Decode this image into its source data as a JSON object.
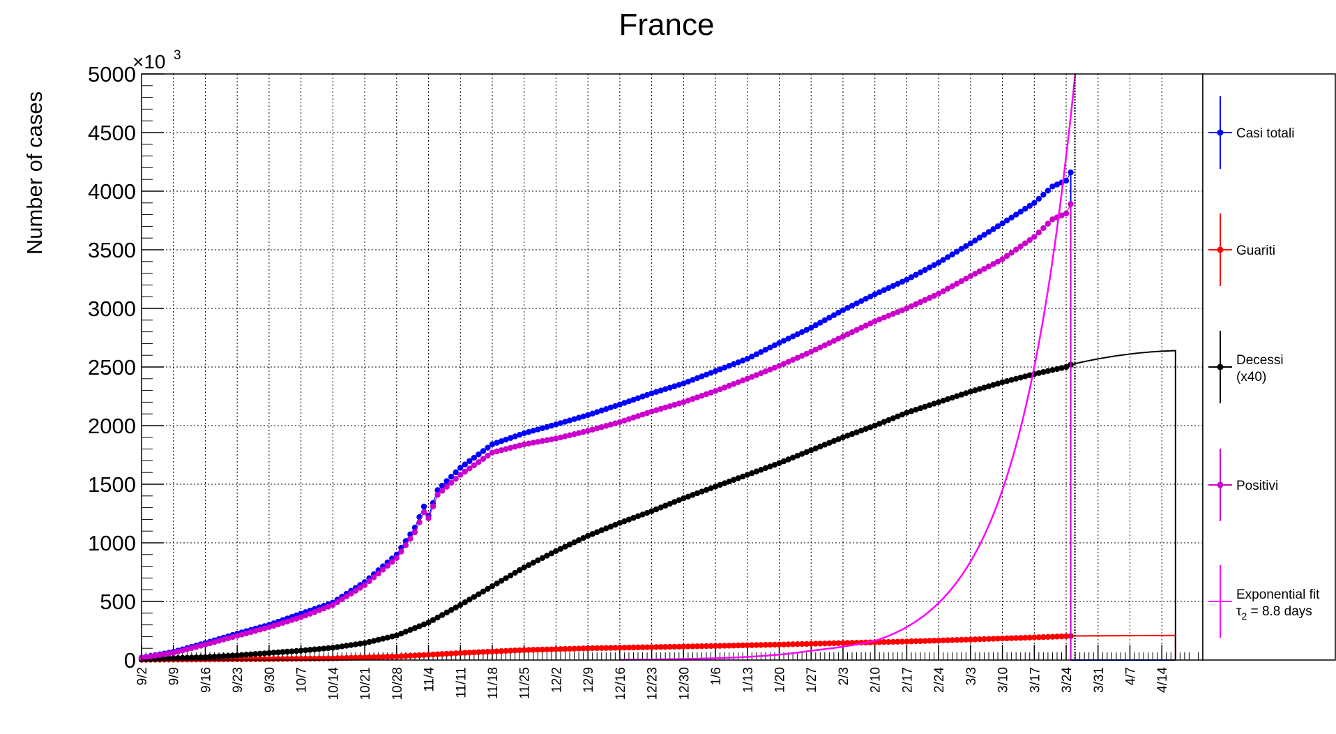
{
  "chart_data": {
    "type": "line",
    "title": "France",
    "ylabel": "Number of cases",
    "y_multiplier_label": "×10",
    "y_multiplier_exponent": "3",
    "ylim": [
      0,
      5000
    ],
    "xlim": [
      "2020-09-02",
      "2021-04-23"
    ],
    "grid": true,
    "legend_position": "right",
    "y_ticks": [
      "0",
      "500",
      "1000",
      "1500",
      "2000",
      "2500",
      "3000",
      "3500",
      "4000",
      "4500",
      "5000"
    ],
    "x_ticks": [
      "9/2",
      "9/9",
      "9/16",
      "9/23",
      "9/30",
      "10/7",
      "10/14",
      "10/21",
      "10/28",
      "11/4",
      "11/11",
      "11/18",
      "11/25",
      "12/2",
      "12/9",
      "12/16",
      "12/23",
      "12/30",
      "1/6",
      "1/13",
      "1/20",
      "1/27",
      "2/3",
      "2/10",
      "2/17",
      "2/24",
      "3/3",
      "3/10",
      "3/17",
      "3/24",
      "3/31",
      "4/7",
      "4/14"
    ],
    "x_tick_dates": [
      "2020-09-02",
      "2020-09-09",
      "2020-09-16",
      "2020-09-23",
      "2020-09-30",
      "2020-10-07",
      "2020-10-14",
      "2020-10-21",
      "2020-10-28",
      "2020-11-04",
      "2020-11-11",
      "2020-11-18",
      "2020-11-25",
      "2020-12-02",
      "2020-12-09",
      "2020-12-16",
      "2020-12-23",
      "2020-12-30",
      "2021-01-06",
      "2021-01-13",
      "2021-01-20",
      "2021-01-27",
      "2021-02-03",
      "2021-02-10",
      "2021-02-17",
      "2021-02-24",
      "2021-03-03",
      "2021-03-10",
      "2021-03-17",
      "2021-03-24",
      "2021-03-31",
      "2021-04-07",
      "2021-04-14"
    ],
    "series": [
      {
        "name": "Casi totali",
        "color": "#0000ff",
        "x": [
          "2020-09-02",
          "2020-09-09",
          "2020-09-16",
          "2020-09-23",
          "2020-09-30",
          "2020-10-07",
          "2020-10-14",
          "2020-10-21",
          "2020-10-28",
          "2020-11-01",
          "2020-11-03",
          "2020-11-04",
          "2020-11-06",
          "2020-11-11",
          "2020-11-18",
          "2020-11-25",
          "2020-12-02",
          "2020-12-09",
          "2020-12-16",
          "2020-12-23",
          "2020-12-30",
          "2021-01-06",
          "2021-01-13",
          "2021-01-20",
          "2021-01-27",
          "2021-02-03",
          "2021-02-10",
          "2021-02-17",
          "2021-02-24",
          "2021-03-03",
          "2021-03-10",
          "2021-03-17",
          "2021-03-21",
          "2021-03-24",
          "2021-03-25"
        ],
        "values": [
          20,
          70,
          145,
          225,
          300,
          395,
          490,
          665,
          900,
          1130,
          1310,
          1230,
          1450,
          1640,
          1840,
          1935,
          2010,
          2090,
          2180,
          2275,
          2360,
          2465,
          2570,
          2705,
          2835,
          2985,
          3120,
          3245,
          3390,
          3555,
          3725,
          3900,
          4040,
          4090,
          4160
        ]
      },
      {
        "name": "Guariti",
        "color": "#ff0000",
        "x": [
          "2020-09-02",
          "2020-09-16",
          "2020-09-30",
          "2020-10-14",
          "2020-10-28",
          "2020-11-11",
          "2020-11-25",
          "2020-12-09",
          "2020-12-23",
          "2021-01-06",
          "2021-01-20",
          "2021-02-03",
          "2021-02-17",
          "2021-03-03",
          "2021-03-17",
          "2021-03-24",
          "2021-03-25"
        ],
        "values": [
          2,
          5,
          8,
          14,
          30,
          60,
          85,
          100,
          110,
          120,
          132,
          145,
          158,
          175,
          193,
          203,
          205
        ]
      },
      {
        "name": "Decessi",
        "name_line2": "(x40)",
        "color": "#000000",
        "x": [
          "2020-09-02",
          "2020-09-09",
          "2020-09-16",
          "2020-09-23",
          "2020-09-30",
          "2020-10-07",
          "2020-10-14",
          "2020-10-21",
          "2020-10-28",
          "2020-11-04",
          "2020-11-11",
          "2020-11-18",
          "2020-11-25",
          "2020-12-02",
          "2020-12-09",
          "2020-12-16",
          "2020-12-23",
          "2020-12-30",
          "2021-01-06",
          "2021-01-13",
          "2021-01-20",
          "2021-01-27",
          "2021-02-03",
          "2021-02-10",
          "2021-02-17",
          "2021-02-24",
          "2021-03-03",
          "2021-03-10",
          "2021-03-17",
          "2021-03-24",
          "2021-03-25"
        ],
        "values": [
          5,
          15,
          25,
          40,
          60,
          80,
          105,
          145,
          210,
          320,
          470,
          630,
          790,
          930,
          1060,
          1170,
          1270,
          1380,
          1480,
          1580,
          1680,
          1790,
          1900,
          2000,
          2110,
          2200,
          2290,
          2370,
          2440,
          2500,
          2520
        ]
      },
      {
        "name": "Positivi",
        "color": "#cc00cc",
        "x": [
          "2020-09-02",
          "2020-09-09",
          "2020-09-16",
          "2020-09-23",
          "2020-09-30",
          "2020-10-07",
          "2020-10-14",
          "2020-10-21",
          "2020-10-28",
          "2020-11-01",
          "2020-11-03",
          "2020-11-04",
          "2020-11-06",
          "2020-11-11",
          "2020-11-18",
          "2020-11-25",
          "2020-12-02",
          "2020-12-09",
          "2020-12-16",
          "2020-12-23",
          "2020-12-30",
          "2021-01-06",
          "2021-01-13",
          "2021-01-20",
          "2021-01-27",
          "2021-02-03",
          "2021-02-10",
          "2021-02-17",
          "2021-02-24",
          "2021-03-03",
          "2021-03-10",
          "2021-03-17",
          "2021-03-21",
          "2021-03-24",
          "2021-03-25"
        ],
        "values": [
          18,
          62,
          132,
          207,
          280,
          365,
          470,
          640,
          870,
          1090,
          1260,
          1210,
          1410,
          1580,
          1770,
          1840,
          1890,
          1955,
          2030,
          2120,
          2200,
          2295,
          2400,
          2510,
          2630,
          2760,
          2890,
          3000,
          3125,
          3275,
          3420,
          3610,
          3760,
          3810,
          3890
        ]
      },
      {
        "name": "Exponential fit",
        "name_line2_prefix": "τ",
        "name_line2_sub": "2",
        "name_line2_suffix": " = 8.8 days",
        "color": "#ff00ff",
        "doubling_time_days": 8.8,
        "x": [
          "2020-12-16",
          "2020-12-30",
          "2021-01-13",
          "2021-01-27",
          "2021-02-10",
          "2021-02-24",
          "2021-03-03",
          "2021-03-10",
          "2021-03-17",
          "2021-03-24",
          "2021-03-26"
        ],
        "values": [
          3,
          9,
          27,
          80,
          163,
          487,
          840,
          1450,
          2500,
          4300,
          5000
        ]
      }
    ]
  }
}
